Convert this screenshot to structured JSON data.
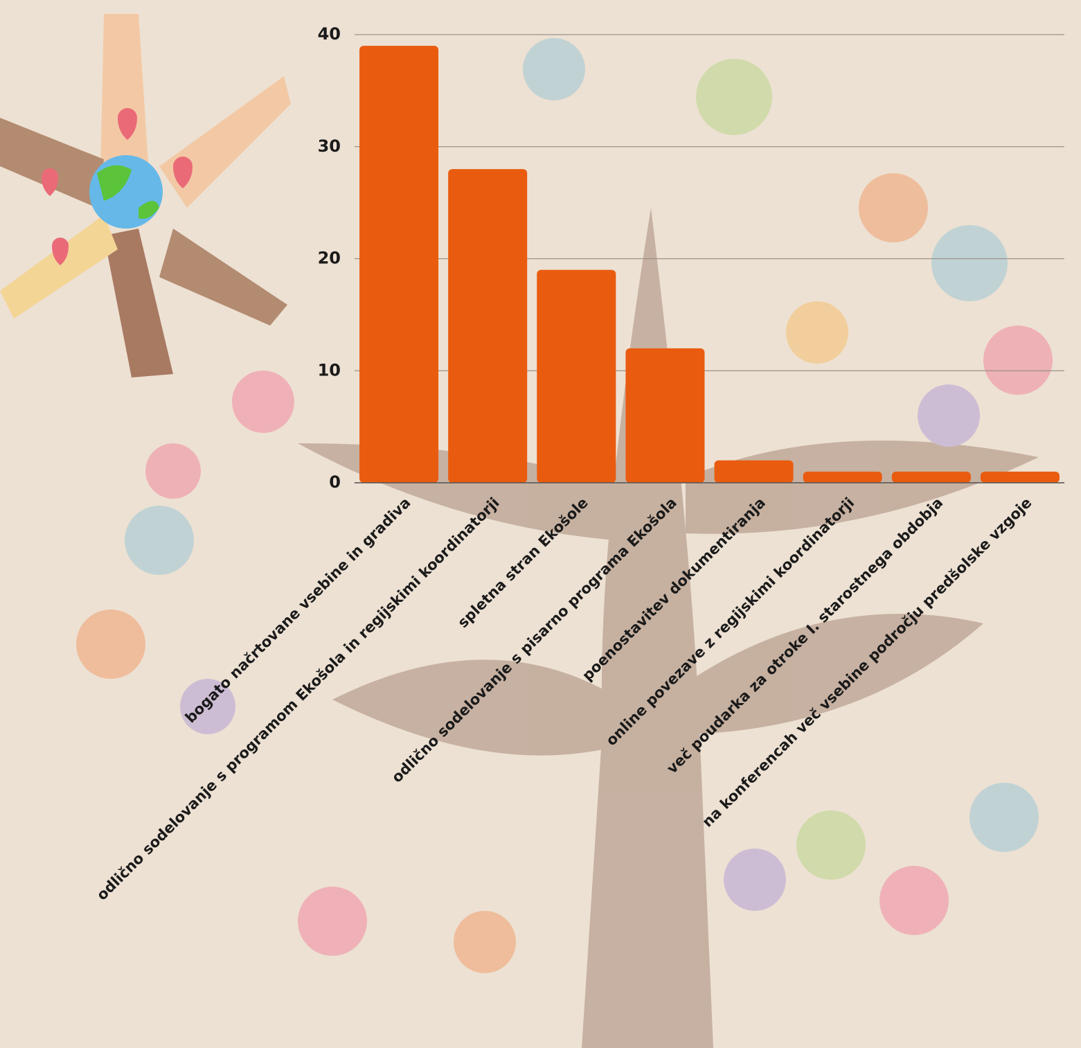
{
  "chart_data": {
    "type": "bar",
    "categories": [
      "bogato načrtovane vsebine in gradiva",
      "odlično sodelovanje s programom Ekošola in regijskimi koordinatorji",
      "spletna stran Ekošole",
      "odlično sodelovanje s pisarno programa Ekošola",
      "poenostavitev dokumentiranja",
      "online povezave z regijskimi koordinatorji",
      "več poudarka za otroke I. starostnega obdobja",
      "na konferencah več vsebine področju predšolske vzgoje"
    ],
    "values": [
      39,
      28,
      19,
      12,
      2,
      1,
      1,
      1
    ],
    "color": "#e95c0f",
    "ylim": [
      0,
      40
    ],
    "yticks": [
      0,
      10,
      20,
      30,
      40
    ],
    "grid": true
  }
}
